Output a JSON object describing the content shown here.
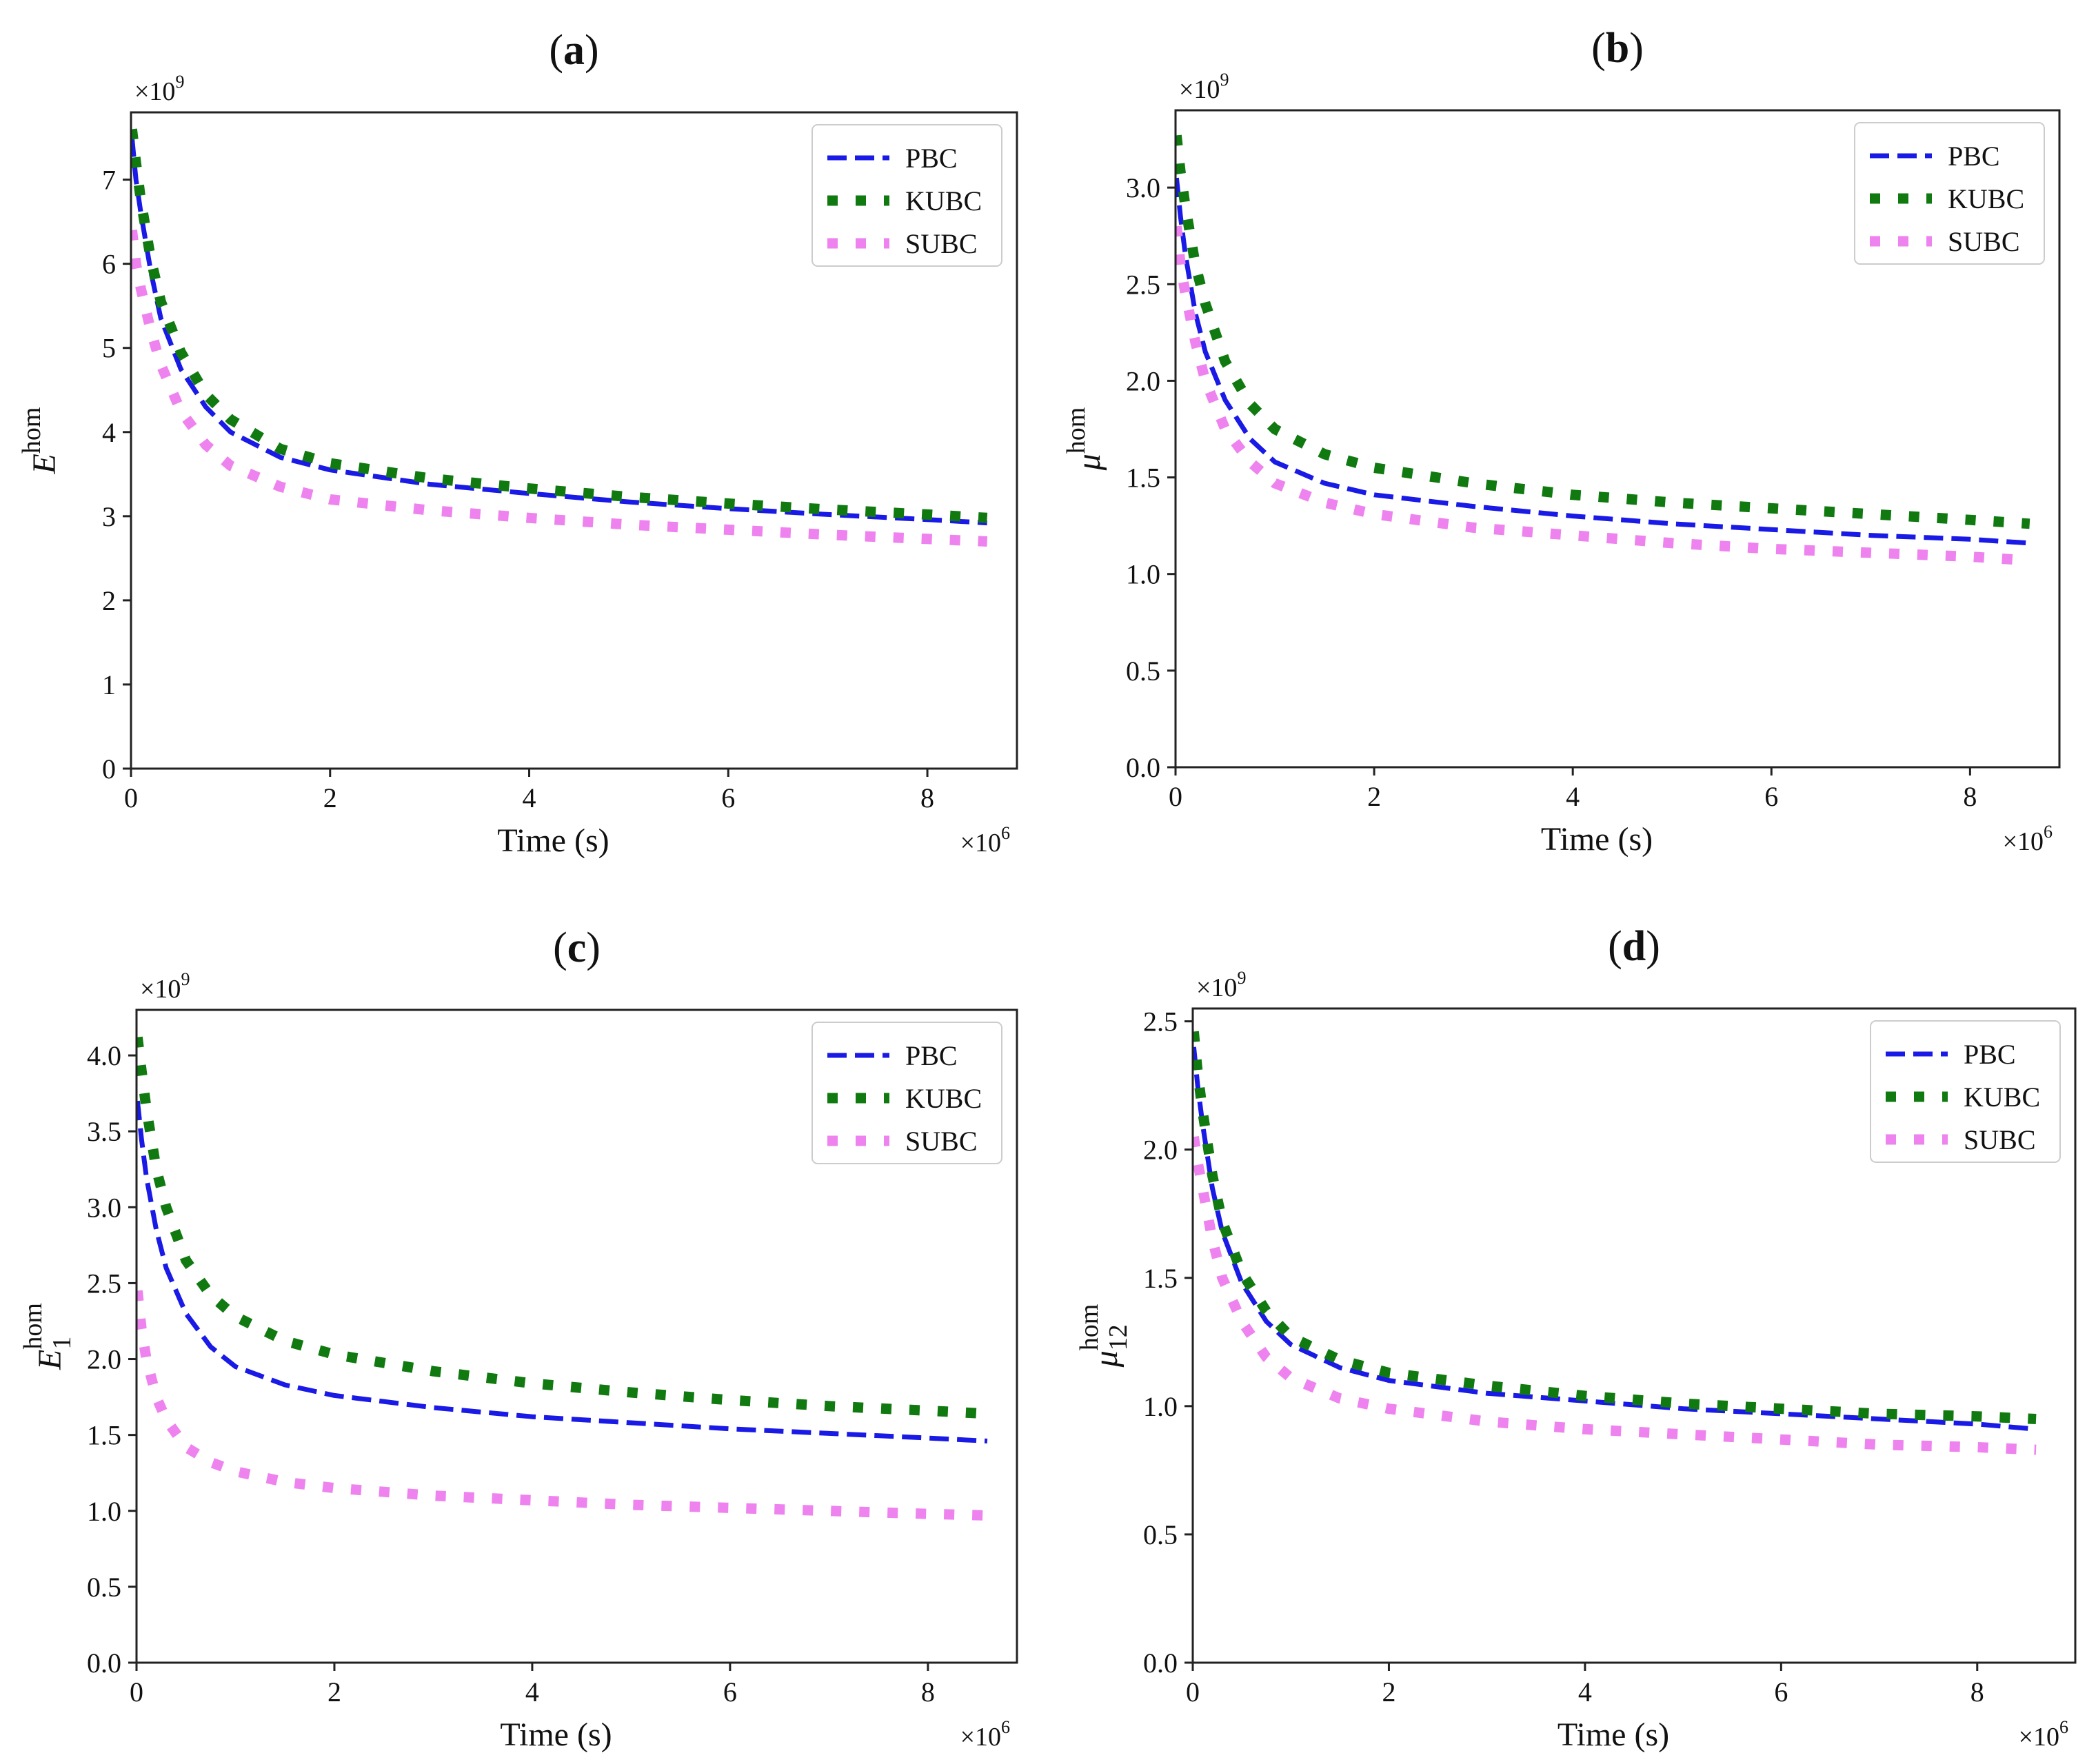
{
  "chart_data": [
    {
      "type": "line",
      "panel_label": "a",
      "xlabel": "Time (s)",
      "ylabel": "E",
      "ylabel_sup": "hom",
      "ylabel_sub": "",
      "x_multiplier": "×10",
      "x_multiplier_exp": "6",
      "y_multiplier": "×10",
      "y_multiplier_exp": "9",
      "xlim": [
        0,
        8.9
      ],
      "ylim": [
        0,
        7.8
      ],
      "xticks": [
        0,
        2,
        4,
        6,
        8
      ],
      "xtick_labels": [
        "0",
        "2",
        "4",
        "6",
        "8"
      ],
      "yticks": [
        0,
        1,
        2,
        3,
        4,
        5,
        6,
        7
      ],
      "ytick_labels": [
        "0",
        "1",
        "2",
        "3",
        "4",
        "5",
        "6",
        "7"
      ],
      "legend_position": "top-right",
      "x": [
        0.01,
        0.05,
        0.1,
        0.2,
        0.3,
        0.5,
        0.75,
        1.0,
        1.5,
        2.0,
        3.0,
        4.0,
        5.0,
        6.0,
        7.0,
        8.0,
        8.6
      ],
      "series": [
        {
          "name": "PBC",
          "style": "dashed",
          "color": "#1a1ae6",
          "values": [
            7.5,
            7.0,
            6.6,
            5.9,
            5.35,
            4.75,
            4.3,
            4.0,
            3.7,
            3.55,
            3.38,
            3.27,
            3.17,
            3.09,
            3.02,
            2.96,
            2.92
          ]
        },
        {
          "name": "KUBC",
          "style": "dotted",
          "color": "#107a10",
          "values": [
            7.6,
            7.2,
            6.75,
            6.05,
            5.55,
            4.95,
            4.45,
            4.15,
            3.8,
            3.63,
            3.45,
            3.33,
            3.23,
            3.15,
            3.08,
            3.02,
            2.98
          ]
        },
        {
          "name": "SUBC",
          "style": "dotted",
          "color": "#ee82ee",
          "values": [
            6.4,
            6.0,
            5.7,
            5.2,
            4.8,
            4.25,
            3.85,
            3.6,
            3.35,
            3.2,
            3.07,
            2.98,
            2.9,
            2.84,
            2.78,
            2.73,
            2.7
          ]
        }
      ]
    },
    {
      "type": "line",
      "panel_label": "b",
      "xlabel": "Time (s)",
      "ylabel": "μ",
      "ylabel_sup": "hom",
      "ylabel_sub": "",
      "x_multiplier": "×10",
      "x_multiplier_exp": "6",
      "y_multiplier": "×10",
      "y_multiplier_exp": "9",
      "xlim": [
        0,
        8.9
      ],
      "ylim": [
        0,
        3.4
      ],
      "xticks": [
        0,
        2,
        4,
        6,
        8
      ],
      "xtick_labels": [
        "0",
        "2",
        "4",
        "6",
        "8"
      ],
      "yticks": [
        0,
        0.5,
        1.0,
        1.5,
        2.0,
        2.5,
        3.0
      ],
      "ytick_labels": [
        "0.0",
        "0.5",
        "1.0",
        "1.5",
        "2.0",
        "2.5",
        "3.0"
      ],
      "legend_position": "top-right",
      "x": [
        0.01,
        0.05,
        0.1,
        0.2,
        0.3,
        0.5,
        0.75,
        1.0,
        1.5,
        2.0,
        3.0,
        4.0,
        5.0,
        6.0,
        7.0,
        8.0,
        8.6
      ],
      "series": [
        {
          "name": "PBC",
          "style": "dashed",
          "color": "#1a1ae6",
          "values": [
            3.05,
            2.85,
            2.65,
            2.35,
            2.15,
            1.9,
            1.7,
            1.58,
            1.47,
            1.41,
            1.35,
            1.3,
            1.26,
            1.23,
            1.2,
            1.18,
            1.16
          ]
        },
        {
          "name": "KUBC",
          "style": "dotted",
          "color": "#107a10",
          "values": [
            3.27,
            3.08,
            2.9,
            2.6,
            2.4,
            2.1,
            1.88,
            1.75,
            1.62,
            1.55,
            1.47,
            1.41,
            1.37,
            1.34,
            1.31,
            1.28,
            1.26
          ]
        },
        {
          "name": "SUBC",
          "style": "dotted",
          "color": "#ee82ee",
          "values": [
            2.8,
            2.6,
            2.45,
            2.2,
            2.0,
            1.75,
            1.58,
            1.47,
            1.37,
            1.31,
            1.24,
            1.2,
            1.16,
            1.13,
            1.11,
            1.09,
            1.07
          ]
        }
      ]
    },
    {
      "type": "line",
      "panel_label": "c",
      "xlabel": "Time (s)",
      "ylabel": "E",
      "ylabel_sup": "hom",
      "ylabel_sub": "1",
      "x_multiplier": "×10",
      "x_multiplier_exp": "6",
      "y_multiplier": "×10",
      "y_multiplier_exp": "9",
      "xlim": [
        0,
        8.9
      ],
      "ylim": [
        0,
        4.3
      ],
      "xticks": [
        0,
        2,
        4,
        6,
        8
      ],
      "xtick_labels": [
        "0",
        "2",
        "4",
        "6",
        "8"
      ],
      "yticks": [
        0,
        0.5,
        1.0,
        1.5,
        2.0,
        2.5,
        3.0,
        3.5,
        4.0
      ],
      "ytick_labels": [
        "0.0",
        "0.5",
        "1.0",
        "1.5",
        "2.0",
        "2.5",
        "3.0",
        "3.5",
        "4.0"
      ],
      "legend_position": "top-right",
      "x": [
        0.01,
        0.05,
        0.1,
        0.2,
        0.3,
        0.5,
        0.75,
        1.0,
        1.5,
        2.0,
        3.0,
        4.0,
        5.0,
        6.0,
        7.0,
        8.0,
        8.6
      ],
      "series": [
        {
          "name": "PBC",
          "style": "dashed",
          "color": "#1a1ae6",
          "values": [
            3.7,
            3.45,
            3.2,
            2.85,
            2.6,
            2.3,
            2.08,
            1.95,
            1.83,
            1.76,
            1.68,
            1.62,
            1.58,
            1.54,
            1.51,
            1.48,
            1.46
          ]
        },
        {
          "name": "KUBC",
          "style": "dotted",
          "color": "#107a10",
          "values": [
            4.12,
            3.9,
            3.65,
            3.25,
            3.0,
            2.65,
            2.42,
            2.28,
            2.12,
            2.03,
            1.92,
            1.84,
            1.78,
            1.73,
            1.69,
            1.66,
            1.64
          ]
        },
        {
          "name": "SUBC",
          "style": "dotted",
          "color": "#ee82ee",
          "values": [
            2.45,
            2.2,
            2.0,
            1.75,
            1.6,
            1.42,
            1.32,
            1.26,
            1.19,
            1.15,
            1.1,
            1.07,
            1.04,
            1.02,
            1.0,
            0.98,
            0.97
          ]
        }
      ]
    },
    {
      "type": "line",
      "panel_label": "d",
      "xlabel": "Time (s)",
      "ylabel": "μ",
      "ylabel_sup": "hom",
      "ylabel_sub": "12",
      "x_multiplier": "×10",
      "x_multiplier_exp": "6",
      "y_multiplier": "×10",
      "y_multiplier_exp": "9",
      "xlim": [
        0,
        9.0
      ],
      "ylim": [
        0,
        2.55
      ],
      "xticks": [
        0,
        2,
        4,
        6,
        8
      ],
      "xtick_labels": [
        "0",
        "2",
        "4",
        "6",
        "8"
      ],
      "yticks": [
        0,
        0.5,
        1.0,
        1.5,
        2.0,
        2.5
      ],
      "ytick_labels": [
        "0.0",
        "0.5",
        "1.0",
        "1.5",
        "2.0",
        "2.5"
      ],
      "legend_position": "top-right",
      "x": [
        0.01,
        0.05,
        0.1,
        0.2,
        0.3,
        0.5,
        0.75,
        1.0,
        1.5,
        2.0,
        3.0,
        4.0,
        5.0,
        6.0,
        7.0,
        8.0,
        8.6
      ],
      "series": [
        {
          "name": "PBC",
          "style": "dashed",
          "color": "#1a1ae6",
          "values": [
            2.4,
            2.25,
            2.1,
            1.85,
            1.68,
            1.48,
            1.33,
            1.24,
            1.15,
            1.1,
            1.05,
            1.02,
            0.99,
            0.97,
            0.95,
            0.93,
            0.91
          ]
        },
        {
          "name": "KUBC",
          "style": "dotted",
          "color": "#107a10",
          "values": [
            2.46,
            2.3,
            2.15,
            1.9,
            1.72,
            1.52,
            1.37,
            1.27,
            1.18,
            1.13,
            1.08,
            1.04,
            1.01,
            0.99,
            0.97,
            0.96,
            0.95
          ]
        },
        {
          "name": "SUBC",
          "style": "dotted",
          "color": "#ee82ee",
          "values": [
            2.05,
            1.95,
            1.85,
            1.65,
            1.5,
            1.33,
            1.19,
            1.11,
            1.03,
            0.99,
            0.94,
            0.91,
            0.89,
            0.87,
            0.85,
            0.84,
            0.83
          ]
        }
      ]
    }
  ]
}
